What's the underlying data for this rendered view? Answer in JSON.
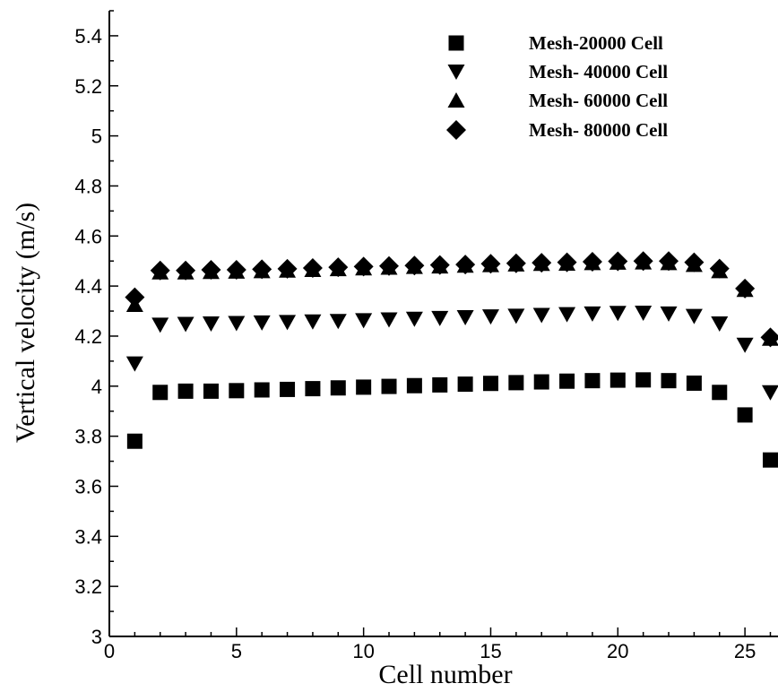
{
  "chart_data": {
    "type": "scatter",
    "title": "",
    "xlabel": "Cell number",
    "ylabel": "Vertical velocity (m/s)",
    "xlim": [
      0,
      26.3
    ],
    "ylim": [
      3,
      5.5
    ],
    "xticks": [
      0,
      5,
      10,
      15,
      20,
      25
    ],
    "yticks": [
      3,
      3.2,
      3.4,
      3.6,
      3.8,
      4,
      4.2,
      4.4,
      4.6,
      4.8,
      5,
      5.2,
      5.4
    ],
    "x": [
      1,
      2,
      3,
      4,
      5,
      6,
      7,
      8,
      9,
      10,
      11,
      12,
      13,
      14,
      15,
      16,
      17,
      18,
      19,
      20,
      21,
      22,
      23,
      24,
      25,
      26
    ],
    "grid": false,
    "legend_position": "top-right",
    "series": [
      {
        "name": "Mesh-20000 Cell",
        "marker": "square",
        "values": [
          3.78,
          3.975,
          3.98,
          3.98,
          3.982,
          3.985,
          3.987,
          3.99,
          3.993,
          3.996,
          3.999,
          4.002,
          4.005,
          4.008,
          4.011,
          4.014,
          4.017,
          4.02,
          4.022,
          4.024,
          4.025,
          4.022,
          4.012,
          3.975,
          3.885,
          3.705
        ]
      },
      {
        "name": "Mesh- 40000 Cell",
        "marker": "triangle-down",
        "values": [
          4.09,
          4.245,
          4.248,
          4.25,
          4.252,
          4.254,
          4.256,
          4.258,
          4.26,
          4.263,
          4.266,
          4.269,
          4.272,
          4.275,
          4.278,
          4.281,
          4.284,
          4.287,
          4.29,
          4.292,
          4.293,
          4.29,
          4.28,
          4.25,
          4.165,
          3.975
        ]
      },
      {
        "name": "Mesh- 60000 Cell",
        "marker": "triangle-up",
        "values": [
          4.325,
          4.455,
          4.455,
          4.457,
          4.458,
          4.46,
          4.462,
          4.465,
          4.468,
          4.471,
          4.474,
          4.477,
          4.479,
          4.482,
          4.484,
          4.487,
          4.489,
          4.49,
          4.492,
          4.494,
          4.495,
          4.492,
          4.485,
          4.46,
          4.385,
          4.19
        ]
      },
      {
        "name": "Mesh- 80000 Cell",
        "marker": "diamond",
        "values": [
          4.355,
          4.462,
          4.462,
          4.465,
          4.465,
          4.467,
          4.469,
          4.472,
          4.475,
          4.478,
          4.48,
          4.482,
          4.484,
          4.486,
          4.489,
          4.491,
          4.493,
          4.495,
          4.497,
          4.499,
          4.5,
          4.5,
          4.495,
          4.47,
          4.39,
          4.195
        ]
      }
    ]
  }
}
